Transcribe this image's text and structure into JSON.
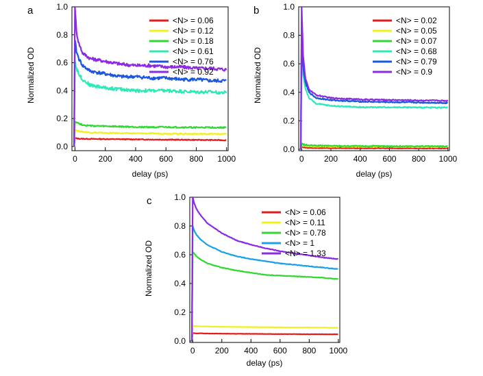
{
  "chart_data": [
    {
      "type": "line",
      "panel": "a",
      "xlabel": "delay (ps)",
      "ylabel": "Normalized OD",
      "xlim": [
        -20,
        1010
      ],
      "ylim": [
        -0.03,
        1.0
      ],
      "xticks": [
        0,
        200,
        400,
        600,
        800,
        1000
      ],
      "yticks": [
        0.0,
        0.2,
        0.4,
        0.6,
        0.8,
        1.0
      ],
      "xtick_labels": [
        "0",
        "200",
        "400",
        "600",
        "800",
        "1000"
      ],
      "ytick_labels": [
        "0.0",
        "0.2",
        "0.4",
        "0.6",
        "0.8",
        "1.0"
      ],
      "grid": false,
      "legend_position": "top-right",
      "x": [
        0,
        10,
        25,
        50,
        100,
        200,
        300,
        400,
        500,
        600,
        700,
        800,
        900,
        1000
      ],
      "series": [
        {
          "name": "<N> = 0.06",
          "color": "#e41a1c",
          "noise": 0.003,
          "values": [
            0.06,
            0.058,
            0.056,
            0.055,
            0.054,
            0.053,
            0.052,
            0.051,
            0.05,
            0.049,
            0.048,
            0.047,
            0.046,
            0.045
          ]
        },
        {
          "name": "<N> = 0.12",
          "color": "#f0f020",
          "noise": 0.004,
          "values": [
            0.12,
            0.115,
            0.11,
            0.105,
            0.1,
            0.097,
            0.095,
            0.094,
            0.093,
            0.092,
            0.091,
            0.09,
            0.09,
            0.089
          ]
        },
        {
          "name": "<N> = 0.18",
          "color": "#33d633",
          "noise": 0.005,
          "values": [
            0.18,
            0.175,
            0.165,
            0.155,
            0.148,
            0.145,
            0.142,
            0.14,
            0.139,
            0.138,
            0.137,
            0.136,
            0.136,
            0.135
          ]
        },
        {
          "name": "<N> = 0.61",
          "color": "#2ee8b8",
          "noise": 0.012,
          "values": [
            0.61,
            0.56,
            0.52,
            0.48,
            0.44,
            0.42,
            0.41,
            0.4,
            0.4,
            0.4,
            0.395,
            0.39,
            0.39,
            0.385
          ]
        },
        {
          "name": "<N> = 0.76",
          "color": "#1a56e0",
          "noise": 0.012,
          "values": [
            0.76,
            0.68,
            0.63,
            0.58,
            0.54,
            0.52,
            0.5,
            0.5,
            0.49,
            0.49,
            0.48,
            0.48,
            0.47,
            0.47
          ]
        },
        {
          "name": "<N> = 0.92",
          "color": "#8a2be2",
          "noise": 0.012,
          "values": [
            1.0,
            0.82,
            0.74,
            0.67,
            0.63,
            0.61,
            0.59,
            0.58,
            0.58,
            0.57,
            0.57,
            0.56,
            0.56,
            0.55
          ]
        }
      ]
    },
    {
      "type": "line",
      "panel": "b",
      "xlabel": "delay (ps)",
      "ylabel": "Normalized OD",
      "xlim": [
        -20,
        1010
      ],
      "ylim": [
        -0.01,
        1.0
      ],
      "xticks": [
        0,
        200,
        400,
        600,
        800,
        1000
      ],
      "yticks": [
        0.0,
        0.2,
        0.4,
        0.6,
        0.8,
        1.0
      ],
      "xtick_labels": [
        "0",
        "200",
        "400",
        "600",
        "800",
        "1000"
      ],
      "ytick_labels": [
        "0.0",
        "0.2",
        "0.4",
        "0.6",
        "0.8",
        "1.0"
      ],
      "grid": false,
      "legend_position": "top-right",
      "x": [
        0,
        10,
        25,
        50,
        100,
        200,
        300,
        400,
        500,
        600,
        700,
        800,
        900,
        1000
      ],
      "series": [
        {
          "name": "<N> = 0.02",
          "color": "#e41a1c",
          "noise": 0.002,
          "values": [
            0.02,
            0.015,
            0.012,
            0.01,
            0.009,
            0.008,
            0.008,
            0.007,
            0.007,
            0.007,
            0.006,
            0.006,
            0.006,
            0.006
          ]
        },
        {
          "name": "<N> = 0.05",
          "color": "#f0f020",
          "noise": 0.003,
          "values": [
            0.03,
            0.025,
            0.022,
            0.02,
            0.019,
            0.018,
            0.018,
            0.017,
            0.017,
            0.017,
            0.017,
            0.016,
            0.016,
            0.016
          ]
        },
        {
          "name": "<N> = 0.07",
          "color": "#33d633",
          "noise": 0.004,
          "values": [
            0.04,
            0.035,
            0.03,
            0.027,
            0.025,
            0.024,
            0.023,
            0.022,
            0.022,
            0.021,
            0.021,
            0.021,
            0.02,
            0.02
          ]
        },
        {
          "name": "<N> = 0.68",
          "color": "#2ee8b8",
          "noise": 0.004,
          "values": [
            0.68,
            0.52,
            0.43,
            0.36,
            0.32,
            0.305,
            0.3,
            0.295,
            0.295,
            0.295,
            0.295,
            0.293,
            0.293,
            0.293
          ]
        },
        {
          "name": "<N> = 0.79",
          "color": "#1a56e0",
          "noise": 0.004,
          "values": [
            0.79,
            0.58,
            0.47,
            0.4,
            0.36,
            0.345,
            0.34,
            0.335,
            0.333,
            0.331,
            0.33,
            0.328,
            0.327,
            0.325
          ]
        },
        {
          "name": "<N> = 0.9",
          "color": "#8a2be2",
          "noise": 0.004,
          "values": [
            1.0,
            0.66,
            0.5,
            0.42,
            0.38,
            0.36,
            0.355,
            0.35,
            0.348,
            0.346,
            0.345,
            0.343,
            0.342,
            0.34
          ]
        }
      ]
    },
    {
      "type": "line",
      "panel": "c",
      "xlabel": "delay (ps)",
      "ylabel": "Normalized OD",
      "xlim": [
        -20,
        1010
      ],
      "ylim": [
        -0.01,
        1.0
      ],
      "xticks": [
        0,
        200,
        400,
        600,
        800,
        1000
      ],
      "yticks": [
        0.0,
        0.2,
        0.4,
        0.6,
        0.8,
        1.0
      ],
      "xtick_labels": [
        "0",
        "200",
        "400",
        "600",
        "800",
        "1000"
      ],
      "ytick_labels": [
        "0.0",
        "0.2",
        "0.4",
        "0.6",
        "0.8",
        "1.0"
      ],
      "grid": false,
      "legend_position": "top-right",
      "x": [
        0,
        10,
        25,
        50,
        100,
        200,
        300,
        400,
        500,
        600,
        700,
        800,
        900,
        1000
      ],
      "series": [
        {
          "name": "<N> = 0.06",
          "color": "#e41a1c",
          "noise": 0.001,
          "values": [
            0.055,
            0.054,
            0.053,
            0.053,
            0.052,
            0.051,
            0.05,
            0.05,
            0.049,
            0.048,
            0.048,
            0.047,
            0.047,
            0.046
          ]
        },
        {
          "name": "<N> = 0.11",
          "color": "#f0f020",
          "noise": 0.001,
          "values": [
            0.105,
            0.104,
            0.103,
            0.102,
            0.101,
            0.099,
            0.098,
            0.097,
            0.096,
            0.095,
            0.094,
            0.094,
            0.093,
            0.092
          ]
        },
        {
          "name": "<N> = 0.78",
          "color": "#33d633",
          "noise": 0.002,
          "values": [
            0.62,
            0.61,
            0.59,
            0.57,
            0.54,
            0.51,
            0.49,
            0.475,
            0.46,
            0.455,
            0.45,
            0.445,
            0.44,
            0.43
          ]
        },
        {
          "name": "<N> = 1",
          "color": "#1aa0e8",
          "noise": 0.002,
          "values": [
            0.8,
            0.77,
            0.74,
            0.71,
            0.67,
            0.62,
            0.59,
            0.57,
            0.555,
            0.54,
            0.53,
            0.52,
            0.51,
            0.5
          ]
        },
        {
          "name": "<N> = 1.33",
          "color": "#8a2be2",
          "noise": 0.002,
          "values": [
            1.0,
            0.96,
            0.92,
            0.88,
            0.82,
            0.75,
            0.7,
            0.67,
            0.645,
            0.625,
            0.61,
            0.595,
            0.58,
            0.57
          ]
        }
      ]
    }
  ]
}
